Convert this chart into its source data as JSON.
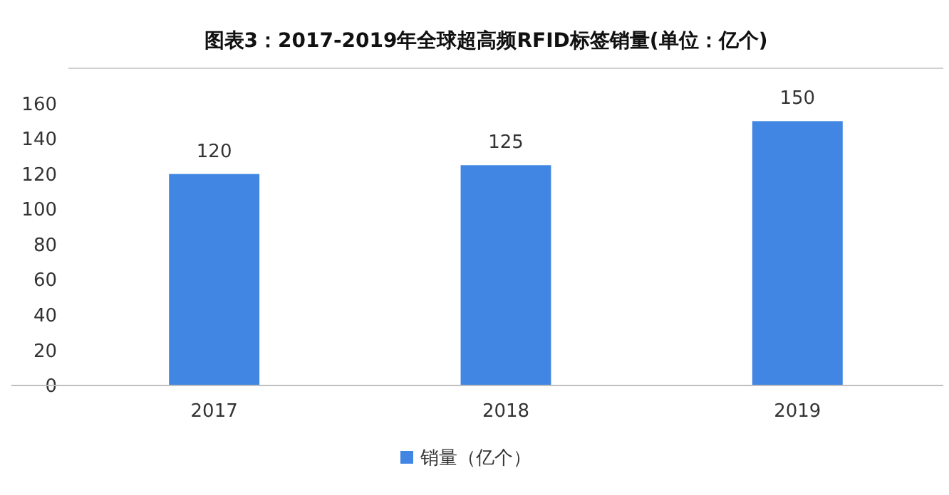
{
  "chart_data": {
    "type": "bar",
    "title": "图表3：2017-2019年全球超高频RFID标签销量(单位：亿个)",
    "categories": [
      "2017",
      "2018",
      "2019"
    ],
    "series": [
      {
        "name": "销量（亿个）",
        "color": "#4186e2",
        "values": [
          120,
          125,
          150
        ]
      }
    ],
    "ylim": [
      0,
      180
    ],
    "yticks": [
      0,
      20,
      40,
      60,
      80,
      100,
      120,
      140,
      160
    ],
    "data_labels": true,
    "legend": "bottom",
    "grid": false
  }
}
